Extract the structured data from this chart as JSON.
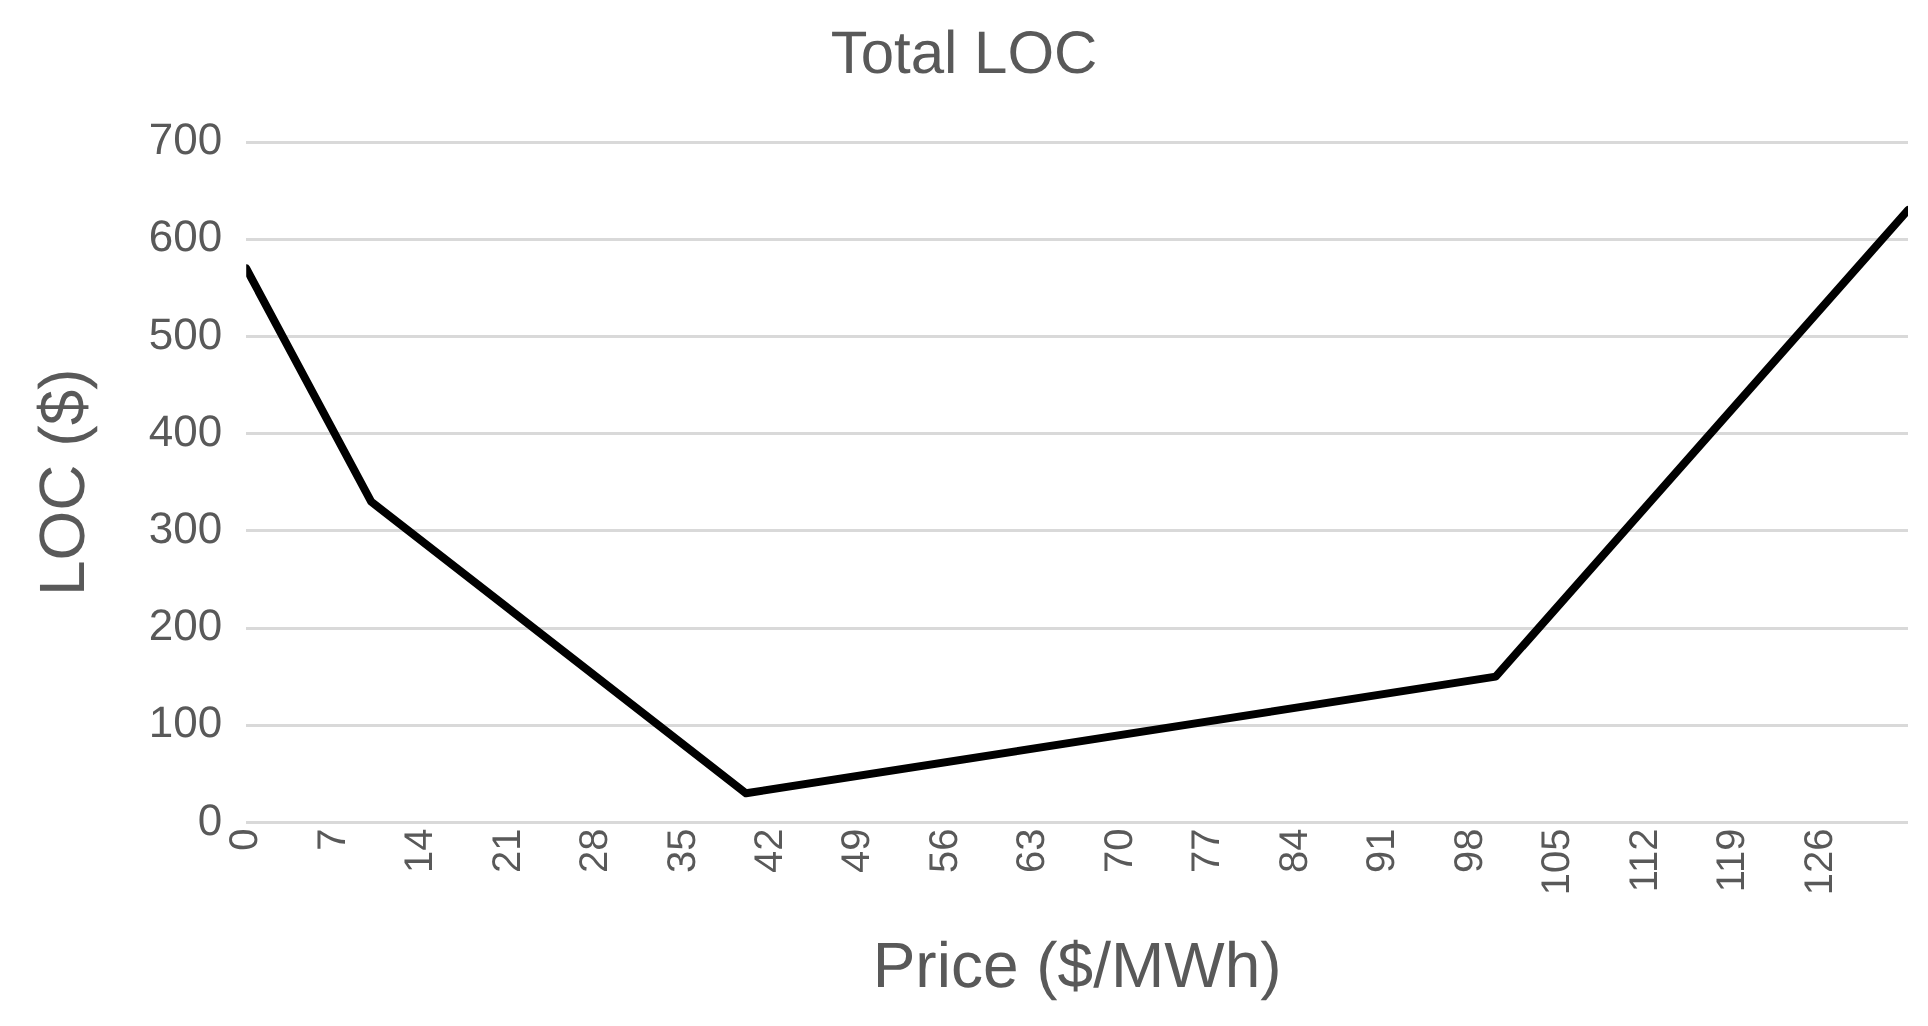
{
  "chart_data": {
    "type": "line",
    "title": "Total LOC",
    "xlabel": "Price ($/MWh)",
    "ylabel": "LOC ($)",
    "x": [
      0,
      10,
      40,
      100,
      133
    ],
    "series": [
      {
        "color": "#000000",
        "values": [
          570,
          330,
          30,
          150,
          630
        ]
      }
    ],
    "xlim": [
      0,
      133
    ],
    "xticks": [
      0,
      7,
      14,
      21,
      28,
      35,
      42,
      49,
      56,
      63,
      70,
      77,
      84,
      91,
      98,
      105,
      112,
      119,
      126
    ],
    "ylim": [
      0,
      700
    ],
    "yticks": [
      0,
      100,
      200,
      300,
      400,
      500,
      600,
      700
    ],
    "grid": "y",
    "legend": false,
    "marker": "none",
    "line_style": "solid"
  }
}
